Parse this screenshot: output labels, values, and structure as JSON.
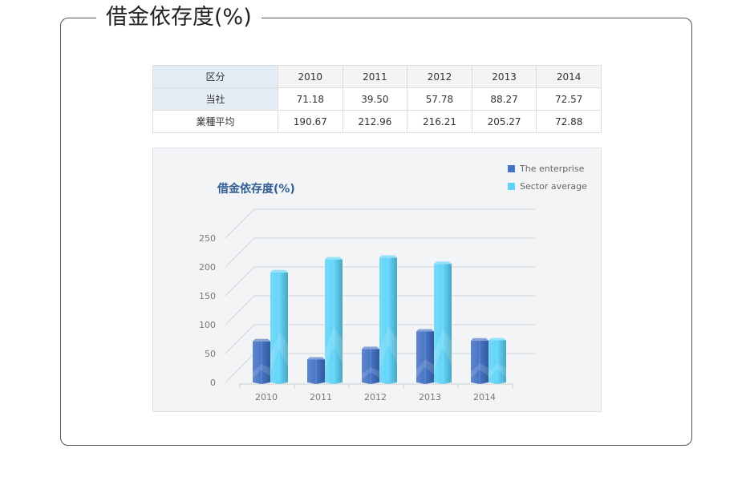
{
  "title": "借金依存度(%)",
  "table": {
    "header_label": "区分",
    "years": [
      "2010",
      "2011",
      "2012",
      "2013",
      "2014"
    ],
    "rows": [
      {
        "label": "当社",
        "values": [
          "71.18",
          "39.50",
          "57.78",
          "88.27",
          "72.57"
        ]
      },
      {
        "label": "業種平均",
        "values": [
          "190.67",
          "212.96",
          "216.21",
          "205.27",
          "72.88"
        ]
      }
    ]
  },
  "chart_data": {
    "type": "bar",
    "title": "借金依存度(%)",
    "categories": [
      "2010",
      "2011",
      "2012",
      "2013",
      "2014"
    ],
    "series": [
      {
        "name": "The enterprise",
        "values": [
          71.18,
          39.5,
          57.78,
          88.27,
          72.57
        ],
        "color": "#4472c4"
      },
      {
        "name": "Sector average",
        "values": [
          190.67,
          212.96,
          216.21,
          205.27,
          72.88
        ],
        "color": "#5fd3f7"
      }
    ],
    "yticks": [
      "0",
      "50",
      "100",
      "150",
      "200",
      "250"
    ],
    "ylim": [
      0,
      250
    ],
    "grid": true,
    "legend": "top-right"
  }
}
